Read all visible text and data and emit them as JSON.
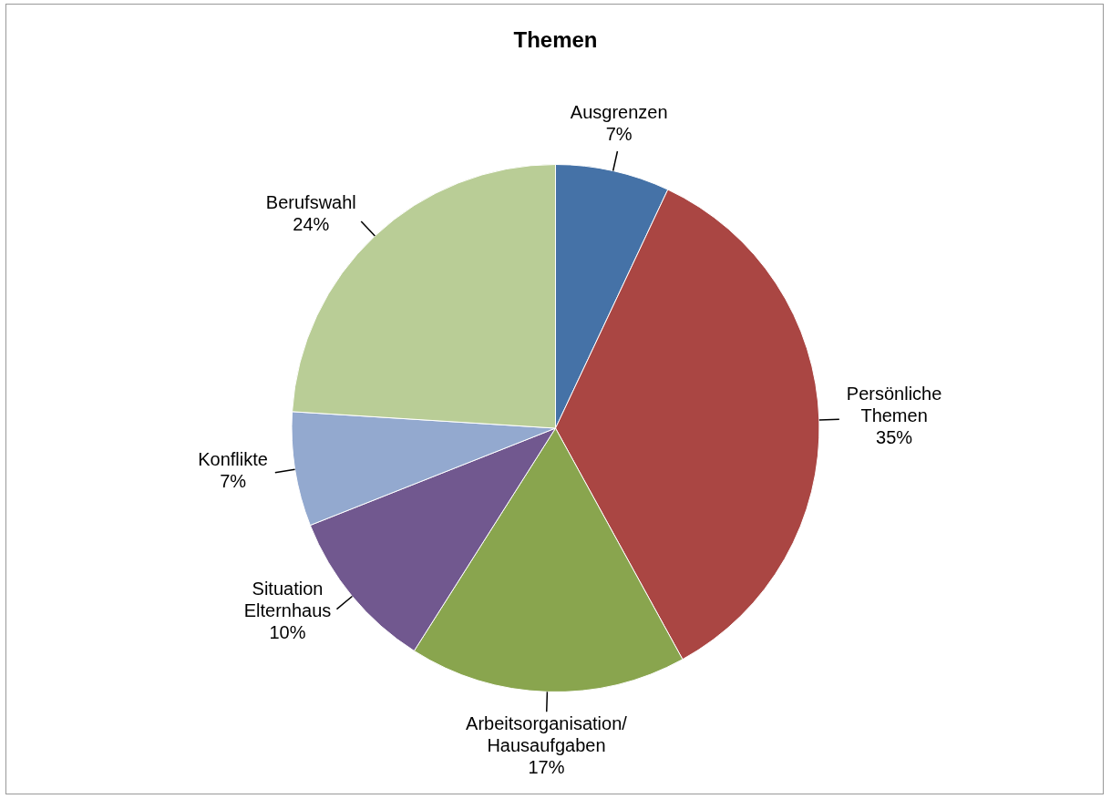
{
  "chart_data": {
    "type": "pie",
    "title": "Themen",
    "categories": [
      "Ausgrenzen",
      "Persönliche Themen",
      "Arbeitsorganisation/ Hausaufgaben",
      "Situation Elternhaus",
      "Konflikte",
      "Berufswahl"
    ],
    "values": [
      7,
      35,
      17,
      10,
      7,
      24
    ],
    "colors": [
      "#4572a7",
      "#aa4643",
      "#89a54e",
      "#71588f",
      "#93a9cf",
      "#b9cd96"
    ],
    "value_labels": [
      "7%",
      "35%",
      "17%",
      "10%",
      "7%",
      "24%"
    ],
    "legend": false
  }
}
